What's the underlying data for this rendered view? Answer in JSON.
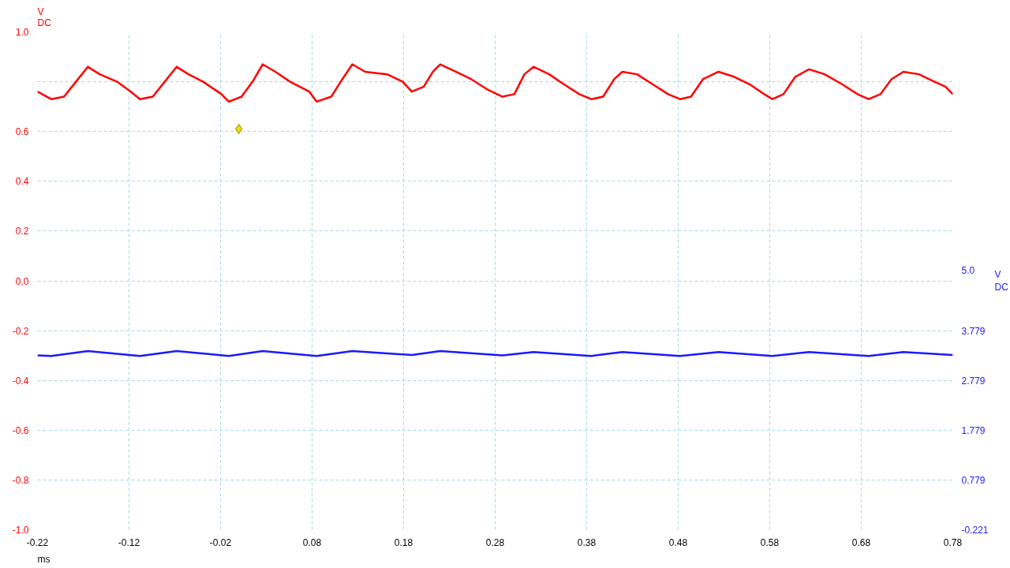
{
  "chart_data": {
    "type": "line",
    "xlabel": "ms",
    "ylabel": "V\nDC",
    "y2label": "V\nDC",
    "xlim": [
      -0.22,
      0.78
    ],
    "xticks": [
      -0.22,
      -0.12,
      -0.02,
      0.08,
      0.18,
      0.28,
      0.38,
      0.48,
      0.58,
      0.68,
      0.78
    ],
    "ylim": [
      -1.0,
      1.0
    ],
    "yticks": [
      {
        "value": -1.0,
        "label": "-1.0"
      },
      -0.8,
      -0.6,
      -0.4,
      -0.2,
      {
        "value": 0.0,
        "label": "0.0"
      },
      0.2,
      0.4,
      0.6,
      {
        "value": 0.8,
        "label": null
      },
      {
        "value": 1.0,
        "label": "1.0"
      }
    ],
    "y2lim": [
      -0.221,
      9.779
    ],
    "y2ticks": [
      -0.221,
      0.779,
      1.779,
      2.779,
      3.779,
      {
        "value": 5.0,
        "label": "5.0"
      }
    ],
    "grid": true,
    "line_style": "solid",
    "series": [
      {
        "color": "#ff0000",
        "marker": "none",
        "x": [
          -0.22,
          -0.205,
          -0.191,
          -0.178,
          -0.165,
          -0.152,
          -0.133,
          -0.118,
          -0.108,
          -0.094,
          -0.081,
          -0.068,
          -0.055,
          -0.039,
          -0.019,
          -0.011,
          0.003,
          0.015,
          0.026,
          0.04,
          0.056,
          0.077,
          0.085,
          0.101,
          0.113,
          0.124,
          0.138,
          0.162,
          0.179,
          0.189,
          0.202,
          0.212,
          0.22,
          0.237,
          0.254,
          0.271,
          0.288,
          0.301,
          0.312,
          0.322,
          0.339,
          0.355,
          0.372,
          0.385,
          0.398,
          0.41,
          0.419,
          0.435,
          0.452,
          0.469,
          0.482,
          0.494,
          0.507,
          0.524,
          0.541,
          0.558,
          0.574,
          0.583,
          0.595,
          0.608,
          0.623,
          0.64,
          0.659,
          0.676,
          0.688,
          0.701,
          0.713,
          0.726,
          0.743,
          0.76,
          0.772,
          0.78
        ],
        "values": [
          0.76,
          0.73,
          0.74,
          0.8,
          0.86,
          0.83,
          0.8,
          0.76,
          0.73,
          0.74,
          0.8,
          0.86,
          0.83,
          0.8,
          0.75,
          0.72,
          0.74,
          0.8,
          0.87,
          0.84,
          0.8,
          0.76,
          0.72,
          0.74,
          0.81,
          0.87,
          0.84,
          0.83,
          0.8,
          0.76,
          0.78,
          0.84,
          0.87,
          0.84,
          0.81,
          0.77,
          0.74,
          0.75,
          0.83,
          0.86,
          0.83,
          0.79,
          0.75,
          0.73,
          0.74,
          0.81,
          0.84,
          0.83,
          0.79,
          0.75,
          0.73,
          0.74,
          0.81,
          0.84,
          0.82,
          0.79,
          0.75,
          0.73,
          0.75,
          0.82,
          0.85,
          0.83,
          0.79,
          0.75,
          0.73,
          0.75,
          0.81,
          0.84,
          0.83,
          0.8,
          0.78,
          0.75
        ]
      },
      {
        "color": "#1a1aff",
        "marker": "none",
        "axis": "y2",
        "x": [
          -0.22,
          -0.205,
          -0.165,
          -0.108,
          -0.068,
          -0.011,
          0.026,
          0.085,
          0.124,
          0.189,
          0.22,
          0.288,
          0.322,
          0.385,
          0.419,
          0.482,
          0.524,
          0.583,
          0.623,
          0.688,
          0.726,
          0.78
        ],
        "values": [
          3.28,
          3.27,
          3.37,
          3.27,
          3.37,
          3.27,
          3.37,
          3.27,
          3.37,
          3.29,
          3.37,
          3.28,
          3.35,
          3.27,
          3.35,
          3.27,
          3.35,
          3.27,
          3.35,
          3.27,
          3.35,
          3.29
        ]
      },
      {
        "type": "scatter",
        "color": "#f0e000",
        "marker": "diamond",
        "x": [
          0.0
        ],
        "values": [
          0.61
        ]
      }
    ]
  }
}
